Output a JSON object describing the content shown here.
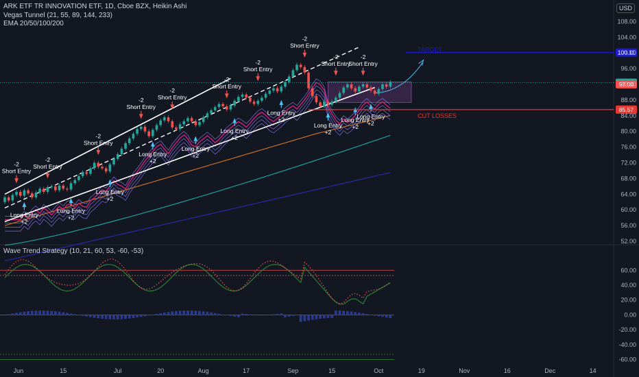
{
  "header": {
    "symbol_line": "ARK ETF TR INNOVATION ETF, 1D, Cboe BZX, Heikin Ashi",
    "indicator_1": "Vegas Tunnel (21, 55, 89, 144, 233)",
    "indicator_2": "EMA 20/50/100/200",
    "currency": "USD"
  },
  "oscillator": {
    "title": "Wave Trend Strategy (10, 21, 60, 53, -60, -53)"
  },
  "annotations": {
    "target_label": "TARGET",
    "cut_label": "CUT LOSSES",
    "short_entry": "Short Entry",
    "long_entry": "Long Entry",
    "minus2": "-2",
    "plus2": "+2"
  },
  "price_badges": [
    {
      "value": "100.11",
      "color": "#1e1ec8"
    },
    {
      "value": "92.43",
      "color": "#26a69a"
    },
    {
      "value": "92.00",
      "color": "#ef5350"
    },
    {
      "value": "85.57",
      "color": "#e53935"
    }
  ],
  "colors": {
    "bull": "#26a69a",
    "bear": "#ef5350",
    "target": "#1e1ec8",
    "cut": "#e53935",
    "ema_orange": "#c8702a",
    "ema_teal": "#1e9e9a",
    "ema_blue": "#2a2aa8",
    "tunnel": "#7e6fd9",
    "tunnel_pink": "#d0207a"
  },
  "chart_data": {
    "type": "candlestick",
    "price_axis": {
      "ticks": [
        "108.00",
        "104.00",
        "100.00",
        "96.00",
        "92.00",
        "88.00",
        "84.00",
        "80.00",
        "76.00",
        "72.00",
        "68.00",
        "64.00",
        "60.00",
        "56.00",
        "52.00"
      ],
      "range": [
        52,
        110
      ]
    },
    "osc_axis": {
      "ticks": [
        "60.00",
        "40.00",
        "20.00",
        "0.00",
        "-20.00",
        "-40.00",
        "-60.00"
      ],
      "range": [
        -65,
        75
      ]
    },
    "time_axis": [
      "Jun",
      "15",
      "Jul",
      "20",
      "Aug",
      "17",
      "Sep",
      "15",
      "Oct",
      "19",
      "Nov",
      "16",
      "Dec",
      "14"
    ],
    "levels": {
      "target": 100.11,
      "last": 92.43,
      "mid": 92.0,
      "cut": 85.57
    },
    "candles": [
      [
        62.0,
        63.2
      ],
      [
        63.2,
        62.4
      ],
      [
        62.4,
        63.8
      ],
      [
        63.8,
        64.6
      ],
      [
        64.6,
        63.6
      ],
      [
        63.6,
        65.0
      ],
      [
        65.0,
        64.2
      ],
      [
        64.2,
        63.2
      ],
      [
        63.2,
        64.4
      ],
      [
        64.4,
        65.4
      ],
      [
        65.4,
        64.6
      ],
      [
        64.6,
        65.8
      ],
      [
        65.8,
        66.0
      ],
      [
        66.0,
        65.0
      ],
      [
        65.0,
        66.2
      ],
      [
        66.2,
        65.4
      ],
      [
        65.4,
        65.2
      ],
      [
        65.2,
        66.8
      ],
      [
        66.8,
        67.6
      ],
      [
        67.6,
        68.6
      ],
      [
        68.6,
        69.6
      ],
      [
        69.6,
        69.2
      ],
      [
        69.2,
        70.6
      ],
      [
        70.6,
        72.0
      ],
      [
        72.0,
        71.0
      ],
      [
        71.0,
        70.6
      ],
      [
        70.6,
        69.8
      ],
      [
        69.8,
        71.6
      ],
      [
        71.6,
        73.0
      ],
      [
        73.0,
        74.2
      ],
      [
        74.2,
        75.6
      ],
      [
        75.6,
        77.0
      ],
      [
        77.0,
        78.2
      ],
      [
        78.2,
        79.4
      ],
      [
        79.4,
        80.6
      ],
      [
        80.6,
        81.2
      ],
      [
        81.2,
        80.0
      ],
      [
        80.0,
        78.8
      ],
      [
        78.8,
        80.4
      ],
      [
        80.4,
        81.6
      ],
      [
        81.6,
        82.8
      ],
      [
        82.8,
        83.6
      ],
      [
        83.6,
        82.6
      ],
      [
        82.6,
        81.0
      ],
      [
        81.0,
        80.6
      ],
      [
        80.6,
        81.8
      ],
      [
        81.8,
        82.6
      ],
      [
        82.6,
        83.4
      ],
      [
        83.4,
        82.6
      ],
      [
        82.6,
        81.6
      ],
      [
        81.6,
        82.4
      ],
      [
        82.4,
        83.6
      ],
      [
        83.6,
        84.6
      ],
      [
        84.6,
        85.4
      ],
      [
        85.4,
        86.2
      ],
      [
        86.2,
        87.0
      ],
      [
        87.0,
        86.4
      ],
      [
        86.4,
        85.6
      ],
      [
        85.6,
        86.6
      ],
      [
        86.6,
        87.8
      ],
      [
        87.8,
        88.8
      ],
      [
        88.8,
        89.4
      ],
      [
        89.4,
        88.6
      ],
      [
        88.6,
        87.6
      ],
      [
        87.6,
        87.0
      ],
      [
        87.0,
        87.8
      ],
      [
        87.8,
        88.6
      ],
      [
        88.6,
        89.6
      ],
      [
        89.6,
        90.4
      ],
      [
        90.4,
        91.0
      ],
      [
        91.0,
        90.2
      ],
      [
        90.2,
        91.4
      ],
      [
        91.4,
        92.6
      ],
      [
        92.6,
        94.0
      ],
      [
        94.0,
        95.6
      ],
      [
        95.6,
        97.0
      ],
      [
        97.0,
        96.4
      ],
      [
        96.4,
        95.0
      ],
      [
        95.0,
        91.0
      ],
      [
        91.0,
        89.0
      ],
      [
        89.0,
        87.4
      ],
      [
        87.4,
        86.4
      ],
      [
        86.4,
        87.6
      ],
      [
        87.6,
        86.8
      ],
      [
        86.8,
        87.6
      ],
      [
        87.6,
        88.6
      ],
      [
        88.6,
        89.8
      ],
      [
        89.8,
        91.2
      ],
      [
        91.2,
        92.0
      ],
      [
        92.0,
        91.0
      ],
      [
        91.0,
        90.2
      ],
      [
        90.2,
        91.4
      ],
      [
        91.4,
        92.0
      ],
      [
        92.0,
        91.2
      ],
      [
        91.2,
        90.4
      ],
      [
        90.4,
        89.6
      ],
      [
        89.6,
        90.8
      ],
      [
        90.8,
        92.0
      ],
      [
        92.0,
        91.4
      ],
      [
        91.4,
        92.6
      ]
    ],
    "markers": [
      {
        "type": "short",
        "i": 3,
        "price": 67.6
      },
      {
        "type": "short",
        "i": 11,
        "price": 68.8
      },
      {
        "type": "short",
        "i": 24,
        "price": 74.8
      },
      {
        "type": "short",
        "i": 35,
        "price": 84.0
      },
      {
        "type": "short",
        "i": 43,
        "price": 86.4
      },
      {
        "type": "short",
        "i": 57,
        "price": 89.2
      },
      {
        "type": "short",
        "i": 65,
        "price": 93.6
      },
      {
        "type": "short",
        "i": 77,
        "price": 99.6
      },
      {
        "type": "short",
        "i": 85,
        "price": 95.0
      },
      {
        "type": "short",
        "i": 92,
        "price": 95.0
      },
      {
        "type": "long",
        "i": 5,
        "price": 61.2
      },
      {
        "type": "long",
        "i": 17,
        "price": 62.2
      },
      {
        "type": "long",
        "i": 27,
        "price": 67.0
      },
      {
        "type": "long",
        "i": 38,
        "price": 76.6
      },
      {
        "type": "long",
        "i": 49,
        "price": 78.0
      },
      {
        "type": "long",
        "i": 59,
        "price": 82.6
      },
      {
        "type": "long",
        "i": 71,
        "price": 87.2
      },
      {
        "type": "long",
        "i": 83,
        "price": 84.0
      },
      {
        "type": "long",
        "i": 90,
        "price": 85.4
      },
      {
        "type": "long",
        "i": 94,
        "price": 86.2
      }
    ]
  }
}
